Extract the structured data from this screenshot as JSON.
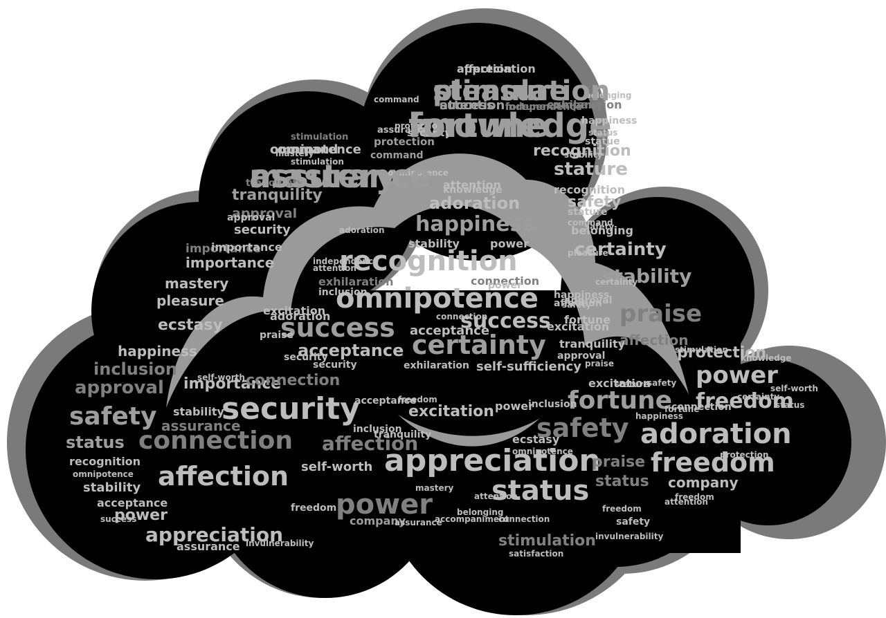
{
  "image": {
    "description_free": true,
    "colors": {
      "background": "#ffffff",
      "cloud_shadow": "#7a7a7a",
      "cloud_fill": "#000000",
      "inner_outline": "#9a9a9a",
      "word_light": "#bdbdbd",
      "word_mid": "#9e9e9e",
      "word_dark": "#808080"
    }
  },
  "words": [
    {
      "text": "pleasure"
    },
    {
      "text": "knowledge"
    },
    {
      "text": "appreciation"
    },
    {
      "text": "success"
    },
    {
      "text": "fortune"
    },
    {
      "text": "company"
    },
    {
      "text": "mastery"
    },
    {
      "text": "omnipotence"
    },
    {
      "text": "stimulation"
    },
    {
      "text": "protection"
    },
    {
      "text": "command"
    },
    {
      "text": "recognition"
    },
    {
      "text": "stature"
    },
    {
      "text": "tranquility"
    },
    {
      "text": "approval"
    },
    {
      "text": "security"
    },
    {
      "text": "attention"
    },
    {
      "text": "adoration"
    },
    {
      "text": "happiness"
    },
    {
      "text": "safety"
    },
    {
      "text": "importance"
    },
    {
      "text": "certainty"
    },
    {
      "text": "belonging"
    },
    {
      "text": "recognition"
    },
    {
      "text": "stability"
    },
    {
      "text": "omnipotence"
    },
    {
      "text": "exhilaration"
    },
    {
      "text": "connection"
    },
    {
      "text": "praise"
    },
    {
      "text": "excitation"
    },
    {
      "text": "success"
    },
    {
      "text": "success"
    },
    {
      "text": "ecstasy"
    },
    {
      "text": "certainty"
    },
    {
      "text": "acceptance"
    },
    {
      "text": "affection"
    },
    {
      "text": "protection"
    },
    {
      "text": "power"
    },
    {
      "text": "inclusion"
    },
    {
      "text": "happiness"
    },
    {
      "text": "approval"
    },
    {
      "text": "importance"
    },
    {
      "text": "connection"
    },
    {
      "text": "safety"
    },
    {
      "text": "security"
    },
    {
      "text": "fortune"
    },
    {
      "text": "freedom"
    },
    {
      "text": "excitation"
    },
    {
      "text": "status"
    },
    {
      "text": "connection"
    },
    {
      "text": "affection"
    },
    {
      "text": "safety"
    },
    {
      "text": "adoration"
    },
    {
      "text": "assurance"
    },
    {
      "text": "affection"
    },
    {
      "text": "appreciation"
    },
    {
      "text": "freedom"
    },
    {
      "text": "praise"
    },
    {
      "text": "self-worth"
    },
    {
      "text": "company"
    },
    {
      "text": "power"
    },
    {
      "text": "status"
    },
    {
      "text": "stability"
    },
    {
      "text": "acceptance"
    },
    {
      "text": "power"
    },
    {
      "text": "appreciation"
    },
    {
      "text": "assurance"
    },
    {
      "text": "stimulation"
    },
    {
      "text": "company"
    },
    {
      "text": "freedom"
    },
    {
      "text": "status"
    },
    {
      "text": "recognition"
    },
    {
      "text": "omnipotence"
    },
    {
      "text": "inclusion"
    },
    {
      "text": "stability"
    },
    {
      "text": "ecstasy"
    },
    {
      "text": "pleasure"
    },
    {
      "text": "mastery"
    },
    {
      "text": "importance"
    },
    {
      "text": "importance"
    },
    {
      "text": "tranquility"
    },
    {
      "text": "approval"
    },
    {
      "text": "security"
    },
    {
      "text": "mastery"
    },
    {
      "text": "omnipotence"
    },
    {
      "text": "stimulation"
    },
    {
      "text": "command"
    },
    {
      "text": "assurance"
    },
    {
      "text": "protection"
    },
    {
      "text": "pleasure"
    },
    {
      "text": "approval"
    },
    {
      "text": "certainty"
    },
    {
      "text": "stability"
    },
    {
      "text": "recognition"
    },
    {
      "text": "stature"
    },
    {
      "text": "command"
    },
    {
      "text": "safety"
    },
    {
      "text": "happiness"
    },
    {
      "text": "belonging"
    },
    {
      "text": "status"
    },
    {
      "text": "statue"
    },
    {
      "text": "security"
    },
    {
      "text": "adoration"
    },
    {
      "text": "acceptance"
    },
    {
      "text": "excitation"
    },
    {
      "text": "fortune"
    },
    {
      "text": "praise"
    },
    {
      "text": "happiness"
    },
    {
      "text": "affection"
    },
    {
      "text": "stability"
    },
    {
      "text": "power"
    },
    {
      "text": "knowledge"
    },
    {
      "text": "adoration"
    },
    {
      "text": "attention"
    },
    {
      "text": "independence"
    },
    {
      "text": "safety"
    },
    {
      "text": "inclusion"
    },
    {
      "text": "power"
    },
    {
      "text": "praise"
    },
    {
      "text": "exhilaration"
    },
    {
      "text": "connection"
    },
    {
      "text": "security"
    },
    {
      "text": "self-sufficiency"
    },
    {
      "text": "tranquility"
    },
    {
      "text": "approval"
    },
    {
      "text": "acceptance"
    },
    {
      "text": "excitation"
    },
    {
      "text": "safety"
    },
    {
      "text": "stature"
    },
    {
      "text": "power"
    },
    {
      "text": "freedom"
    },
    {
      "text": "inclusion"
    },
    {
      "text": "happiness"
    },
    {
      "text": "fortune"
    },
    {
      "text": "connection"
    },
    {
      "text": "stimulation"
    },
    {
      "text": "knowledge"
    },
    {
      "text": "self-worth"
    },
    {
      "text": "certainty"
    },
    {
      "text": "status"
    },
    {
      "text": "tranquility"
    },
    {
      "text": "omnipotence"
    },
    {
      "text": "protection"
    },
    {
      "text": "connection"
    },
    {
      "text": "assurance"
    },
    {
      "text": "safety"
    },
    {
      "text": "freedom"
    },
    {
      "text": "mastery"
    },
    {
      "text": "invulnerability"
    },
    {
      "text": "accompaniment"
    },
    {
      "text": "attention"
    },
    {
      "text": "belonging"
    },
    {
      "text": "satisfaction"
    },
    {
      "text": "self-worth"
    },
    {
      "text": "success"
    },
    {
      "text": "invulnerability"
    },
    {
      "text": "attention"
    },
    {
      "text": "freedom"
    },
    {
      "text": "stimulation"
    },
    {
      "text": "fortune"
    },
    {
      "text": "affection"
    },
    {
      "text": "attention"
    },
    {
      "text": "independence"
    },
    {
      "text": "exhilaration"
    },
    {
      "text": "assurance"
    },
    {
      "text": "command"
    }
  ]
}
